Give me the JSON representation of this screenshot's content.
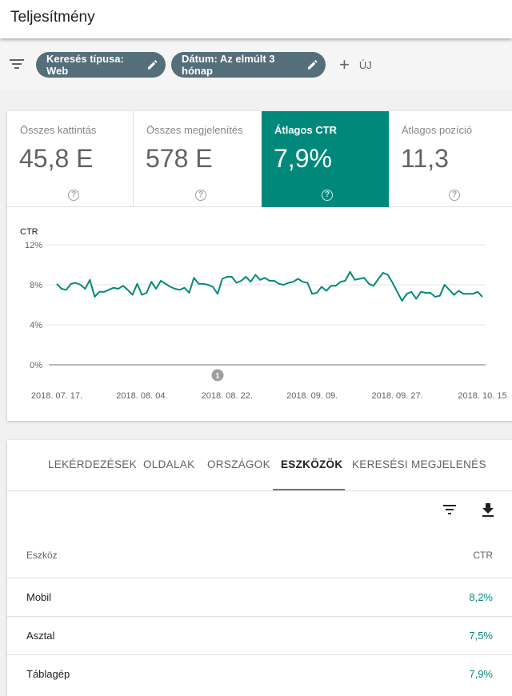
{
  "header": {
    "title": "Teljesítmény"
  },
  "filters": {
    "chips": [
      {
        "label": "Keresés típusa: Web"
      },
      {
        "label": "Dátum: Az elmúlt 3 hónap"
      }
    ],
    "new_label": "ÚJ"
  },
  "metrics": [
    {
      "label": "Összes kattintás",
      "value": "45,8 E",
      "selected": false
    },
    {
      "label": "Összes megjelenítés",
      "value": "578 E",
      "selected": false
    },
    {
      "label": "Átlagos CTR",
      "value": "7,9%",
      "selected": true
    },
    {
      "label": "Átlagos pozíció",
      "value": "11,3",
      "selected": false
    }
  ],
  "chart_data": {
    "type": "line",
    "title": "",
    "ylabel": "CTR",
    "ylim": [
      0,
      12
    ],
    "yticks": [
      "12%",
      "8%",
      "4%",
      "0%"
    ],
    "ytick_values": [
      12,
      8,
      4,
      0
    ],
    "x_tick_labels": [
      "2018. 07. 17.",
      "2018. 08. 04.",
      "2018. 08. 22.",
      "2018. 09. 09.",
      "2018. 09. 27.",
      "2018. 10. 15"
    ],
    "x_tick_day_index": [
      0,
      18,
      36,
      54,
      72,
      90
    ],
    "grid": true,
    "color": "#00897b",
    "annotation": {
      "label": "1",
      "day_index": 34
    },
    "series": [
      {
        "values": [
          8.1,
          7.6,
          7.5,
          8.1,
          8.2,
          8.0,
          7.6,
          8.5,
          6.8,
          7.3,
          7.3,
          7.5,
          7.7,
          7.6,
          7.9,
          7.5,
          7.0,
          8.1,
          7.0,
          7.2,
          8.3,
          7.6,
          8.4,
          8.1,
          7.8,
          7.6,
          7.5,
          7.7,
          7.2,
          8.7,
          8.1,
          8.1,
          8.0,
          7.8,
          7.1,
          8.6,
          8.8,
          8.8,
          8.2,
          8.4,
          8.8,
          8.3,
          9.0,
          8.5,
          8.7,
          8.4,
          8.4,
          8.1,
          8.0,
          8.2,
          8.3,
          8.6,
          8.3,
          8.2,
          7.1,
          7.2,
          7.8,
          7.4,
          7.9,
          7.9,
          8.3,
          8.4,
          9.3,
          8.5,
          8.6,
          8.7,
          8.1,
          7.9,
          8.6,
          9.2,
          9.0,
          8.2,
          7.3,
          6.4,
          7.1,
          7.3,
          6.6,
          7.3,
          7.2,
          7.2,
          6.8,
          6.9,
          8.0,
          7.5,
          7.0,
          7.4,
          7.1,
          7.1,
          7.1,
          7.3,
          6.8
        ]
      }
    ]
  },
  "table": {
    "tabs": [
      "LEKÉRDEZÉSEK",
      "OLDALAK",
      "ORSZÁGOK",
      "ESZKÖZÖK",
      "KERESÉSI MEGJELENÉS"
    ],
    "active_tab": "ESZKÖZÖK",
    "columns": [
      "Eszköz",
      "CTR"
    ],
    "rows": [
      {
        "device": "Mobil",
        "ctr": "8,2%"
      },
      {
        "device": "Asztal",
        "ctr": "7,5%"
      },
      {
        "device": "Táblagép",
        "ctr": "7,9%"
      }
    ]
  },
  "icons": {
    "filter": "filter-icon",
    "edit": "pencil-icon",
    "add": "plus-icon",
    "help": "help-icon",
    "download": "download-icon"
  }
}
